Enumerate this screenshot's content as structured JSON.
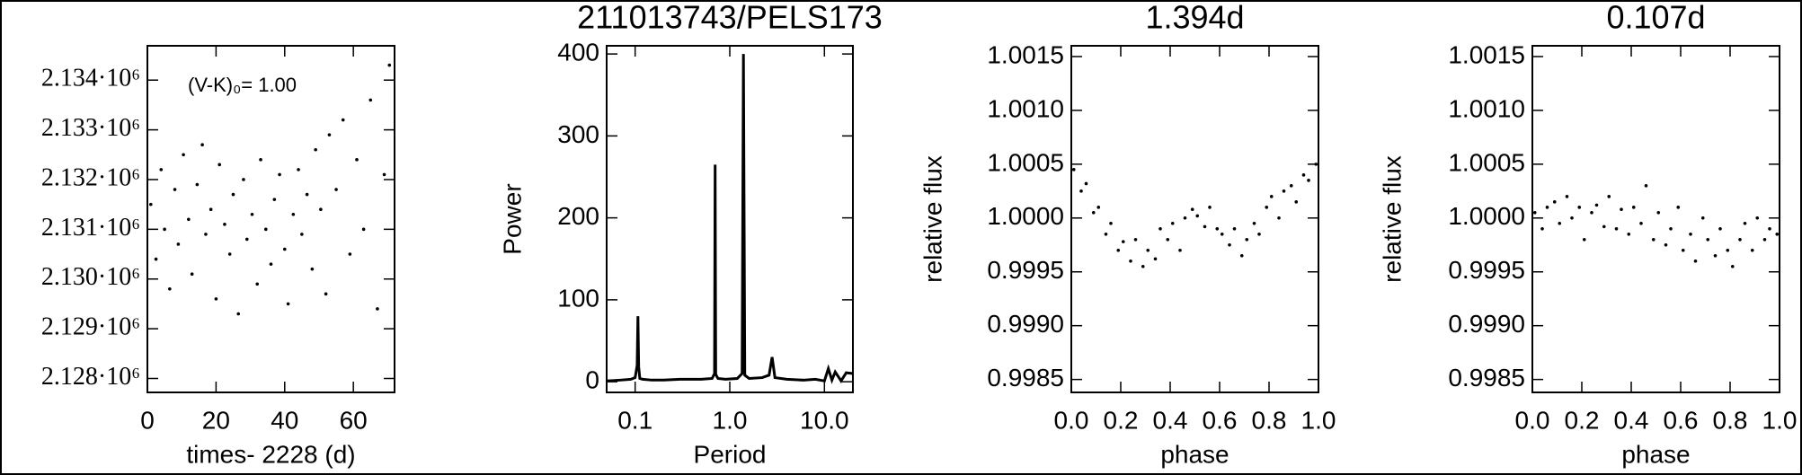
{
  "chart_data": [
    {
      "type": "scatter",
      "xlabel": "times- 2228 (d)",
      "annotation": "(V-K)₀= 1.00",
      "color": "#000000",
      "xlim": [
        0,
        72
      ],
      "xticks": [
        0,
        20,
        40,
        60
      ],
      "ylim": [
        2127720,
        2134690
      ],
      "yticks": [
        {
          "value": 2128000,
          "label": "2.128·10⁶"
        },
        {
          "value": 2129000,
          "label": "2.129·10⁶"
        },
        {
          "value": 2130000,
          "label": "2.130·10⁶"
        },
        {
          "value": 2131000,
          "label": "2.131·10⁶"
        },
        {
          "value": 2132000,
          "label": "2.132·10⁶"
        },
        {
          "value": 2133000,
          "label": "2.133·10⁶"
        },
        {
          "value": 2134000,
          "label": "2.134·10⁶"
        }
      ],
      "x": [
        1,
        2.5,
        4,
        5,
        6.5,
        8,
        9,
        10.5,
        12,
        13,
        14.5,
        16,
        17,
        18.5,
        20,
        21,
        22.5,
        24,
        25,
        26.5,
        28,
        29,
        30.5,
        32,
        33,
        34.5,
        36,
        37,
        38.5,
        40,
        41,
        42.5,
        44,
        45,
        46.5,
        48,
        49,
        50.5,
        52,
        53,
        55,
        57,
        59,
        61,
        63,
        65,
        67,
        69,
        70.5
      ],
      "values": [
        2131500,
        2130400,
        2132200,
        2131000,
        2129800,
        2131800,
        2130700,
        2132500,
        2131200,
        2130100,
        2131900,
        2132700,
        2130900,
        2131400,
        2129600,
        2132300,
        2131100,
        2130500,
        2131700,
        2129300,
        2132000,
        2130800,
        2131300,
        2129900,
        2132400,
        2131000,
        2130300,
        2131600,
        2132100,
        2130600,
        2129500,
        2131300,
        2132200,
        2130900,
        2131700,
        2130200,
        2132600,
        2131400,
        2129700,
        2132900,
        2131800,
        2133200,
        2130500,
        2132400,
        2131000,
        2133600,
        2129400,
        2132100,
        2134300
      ]
    },
    {
      "type": "line",
      "title": "211013743/PELS173",
      "xlabel": "Period",
      "ylabel": "Power",
      "color": "#000000",
      "xscale": "log",
      "xlim": [
        0.05,
        20
      ],
      "xticks": [
        {
          "value": 0.1,
          "label": "0.1"
        },
        {
          "value": 1,
          "label": "1.0"
        },
        {
          "value": 10,
          "label": "10.0"
        }
      ],
      "ylim": [
        -13,
        410
      ],
      "yticks": [
        0,
        100,
        200,
        300,
        400
      ],
      "x": [
        0.05,
        0.07,
        0.09,
        0.1,
        0.105,
        0.107,
        0.109,
        0.112,
        0.12,
        0.15,
        0.2,
        0.3,
        0.5,
        0.65,
        0.69,
        0.7,
        0.71,
        0.75,
        0.9,
        1.2,
        1.35,
        1.394,
        1.44,
        1.6,
        2.2,
        2.6,
        2.8,
        3.0,
        4,
        6,
        8,
        10,
        11,
        12,
        13,
        15,
        17,
        20
      ],
      "values": [
        1,
        2,
        3,
        5,
        20,
        80,
        18,
        4,
        3,
        2,
        2,
        3,
        3,
        4,
        10,
        265,
        9,
        4,
        3,
        4,
        10,
        400,
        8,
        4,
        5,
        8,
        30,
        5,
        3,
        2,
        3,
        1,
        16,
        2,
        12,
        1,
        11,
        10
      ]
    },
    {
      "type": "scatter",
      "title": "1.394d",
      "xlabel": "phase",
      "ylabel": "relative flux",
      "color": "#000000",
      "xlim": [
        0,
        1
      ],
      "xticks": [
        {
          "value": 0,
          "label": "0.0"
        },
        0.2,
        0.4,
        0.6,
        0.8,
        {
          "value": 1,
          "label": "1.0"
        }
      ],
      "ylim": [
        0.99838,
        1.0016
      ],
      "yticks": [
        0.9985,
        {
          "value": 0.999,
          "label": "0.9990"
        },
        0.9995,
        {
          "value": 1,
          "label": "1.0000"
        },
        1.0005,
        {
          "value": 1.001,
          "label": "1.0010"
        },
        1.0015
      ],
      "x": [
        0.01,
        0.04,
        0.06,
        0.09,
        0.11,
        0.14,
        0.16,
        0.19,
        0.21,
        0.24,
        0.26,
        0.29,
        0.31,
        0.34,
        0.36,
        0.39,
        0.41,
        0.44,
        0.46,
        0.49,
        0.51,
        0.54,
        0.56,
        0.59,
        0.61,
        0.64,
        0.66,
        0.69,
        0.71,
        0.74,
        0.76,
        0.79,
        0.81,
        0.84,
        0.86,
        0.89,
        0.91,
        0.94,
        0.96,
        0.99
      ],
      "values": [
        1.00045,
        1.00025,
        1.00032,
        1.00005,
        1.0001,
        0.99985,
        0.99995,
        0.9997,
        0.99978,
        0.9996,
        0.9998,
        0.99955,
        0.9997,
        0.99962,
        0.9999,
        0.9998,
        0.99995,
        0.9997,
        1.0,
        1.00008,
        1.00002,
        0.99992,
        1.0001,
        0.9999,
        0.99985,
        0.99975,
        0.9999,
        0.99965,
        0.9998,
        0.99995,
        0.99985,
        1.0001,
        1.0002,
        1.0,
        1.00025,
        1.0003,
        1.00015,
        1.0004,
        1.00035,
        1.0005
      ]
    },
    {
      "type": "scatter",
      "title": "0.107d",
      "xlabel": "phase",
      "ylabel": "relative flux",
      "color": "#000000",
      "xlim": [
        0,
        1
      ],
      "xticks": [
        {
          "value": 0,
          "label": "0.0"
        },
        0.2,
        0.4,
        0.6,
        0.8,
        {
          "value": 1,
          "label": "1.0"
        }
      ],
      "ylim": [
        0.99838,
        1.0016
      ],
      "yticks": [
        0.9985,
        {
          "value": 0.999,
          "label": "0.9990"
        },
        0.9995,
        {
          "value": 1,
          "label": "1.0000"
        },
        1.0005,
        {
          "value": 1.001,
          "label": "1.0010"
        },
        1.0015
      ],
      "x": [
        0.01,
        0.04,
        0.06,
        0.09,
        0.11,
        0.14,
        0.16,
        0.19,
        0.21,
        0.24,
        0.26,
        0.29,
        0.31,
        0.34,
        0.36,
        0.39,
        0.41,
        0.44,
        0.46,
        0.49,
        0.51,
        0.54,
        0.56,
        0.59,
        0.61,
        0.64,
        0.66,
        0.69,
        0.71,
        0.74,
        0.76,
        0.79,
        0.81,
        0.84,
        0.86,
        0.89,
        0.91,
        0.94,
        0.96,
        0.99
      ],
      "values": [
        1.00005,
        0.9999,
        1.0001,
        1.00015,
        0.99995,
        1.0002,
        1.0,
        1.0001,
        0.9998,
        1.00005,
        1.00012,
        0.99992,
        1.0002,
        0.9999,
        1.00008,
        0.99985,
        1.0001,
        0.99995,
        1.0003,
        0.9998,
        1.00005,
        0.99975,
        0.9999,
        1.0001,
        0.9997,
        0.99985,
        0.9996,
        1.0,
        0.9998,
        0.99965,
        0.9999,
        0.9997,
        0.99955,
        0.9998,
        0.99995,
        0.9997,
        1.0,
        0.9998,
        0.9999,
        0.99985
      ]
    }
  ]
}
